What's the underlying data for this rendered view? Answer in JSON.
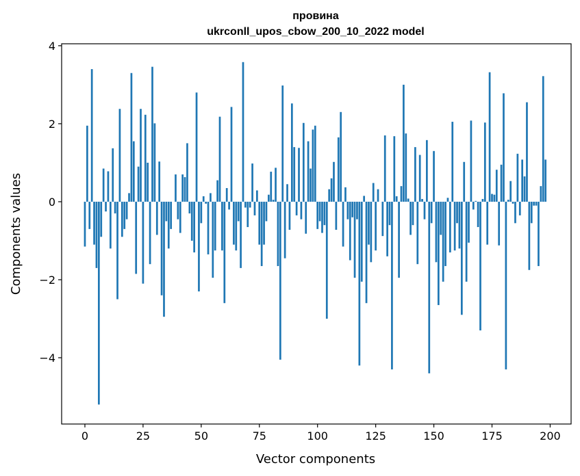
{
  "chart_data": {
    "type": "bar",
    "title": "провина",
    "subtitle": "ukrconll_upos_cbow_200_10_2022 model",
    "xlabel": "Vector components",
    "ylabel": "Components values",
    "xlim": [
      -10,
      209
    ],
    "ylim": [
      -5.7,
      4.05
    ],
    "xticks": [
      0,
      25,
      50,
      75,
      100,
      125,
      150,
      175,
      200
    ],
    "yticks": [
      -4,
      -2,
      0,
      2,
      4
    ],
    "xtick_labels": [
      "0",
      "25",
      "50",
      "75",
      "100",
      "125",
      "150",
      "175",
      "200"
    ],
    "ytick_labels": [
      "−4",
      "−2",
      "0",
      "2",
      "4"
    ],
    "grid": false,
    "bar_color": "#1f77b4",
    "values": [
      -1.15,
      1.95,
      -0.7,
      3.4,
      -1.1,
      -1.7,
      -5.2,
      -0.9,
      0.85,
      -0.25,
      0.78,
      -1.2,
      1.37,
      -0.3,
      -2.5,
      2.38,
      -0.9,
      -0.7,
      -0.45,
      0.22,
      3.3,
      1.55,
      -1.85,
      0.9,
      2.38,
      -2.1,
      2.23,
      1.0,
      -1.6,
      3.46,
      2.01,
      -0.85,
      1.03,
      -2.4,
      -2.95,
      -0.5,
      -1.2,
      -0.7,
      0.0,
      0.7,
      -0.45,
      -0.8,
      0.7,
      0.63,
      1.5,
      -0.3,
      -1.0,
      -1.3,
      2.8,
      -2.3,
      -0.55,
      0.14,
      -0.05,
      -1.35,
      0.22,
      -1.95,
      -1.25,
      0.55,
      2.18,
      -1.25,
      -2.6,
      0.35,
      -0.2,
      2.43,
      -1.1,
      -1.25,
      -0.5,
      -1.7,
      3.58,
      -0.15,
      -0.65,
      -0.15,
      0.98,
      -0.35,
      0.29,
      -1.1,
      -1.65,
      -1.1,
      -0.5,
      0.18,
      0.77,
      0.05,
      0.87,
      -1.65,
      -4.05,
      2.98,
      -1.45,
      0.45,
      -0.72,
      2.52,
      1.4,
      -0.35,
      1.38,
      -0.45,
      2.02,
      -0.82,
      1.55,
      0.85,
      1.85,
      1.95,
      -0.7,
      -0.5,
      -0.8,
      -0.6,
      -3.0,
      0.32,
      0.6,
      1.02,
      -0.72,
      1.65,
      2.3,
      -1.15,
      0.37,
      -0.45,
      -1.5,
      -0.4,
      -1.95,
      -0.45,
      -4.2,
      -2.05,
      0.15,
      -2.6,
      -1.1,
      -1.55,
      0.48,
      -1.25,
      0.32,
      0.0,
      -0.88,
      1.7,
      -1.4,
      -0.6,
      -4.3,
      1.68,
      0.14,
      -1.95,
      0.4,
      3.0,
      1.75,
      0.08,
      -0.85,
      -0.6,
      1.4,
      -1.6,
      1.2,
      0.07,
      -0.45,
      1.58,
      -4.4,
      -0.55,
      1.3,
      -1.55,
      -2.65,
      -0.85,
      -2.05,
      -1.65,
      0.1,
      -1.3,
      2.05,
      -1.25,
      -0.55,
      -1.2,
      -2.9,
      1.02,
      -2.05,
      -1.05,
      2.08,
      -0.2,
      0.02,
      -0.65,
      -3.3,
      0.07,
      2.03,
      -1.1,
      3.32,
      0.2,
      0.18,
      0.82,
      -1.12,
      0.95,
      2.78,
      -4.3,
      0.05,
      0.53,
      -0.05,
      -0.55,
      1.23,
      -0.35,
      1.08,
      0.65,
      2.55,
      -1.75,
      -0.55,
      -0.1,
      -0.1,
      -1.65,
      0.4,
      3.22,
      1.08
    ]
  }
}
